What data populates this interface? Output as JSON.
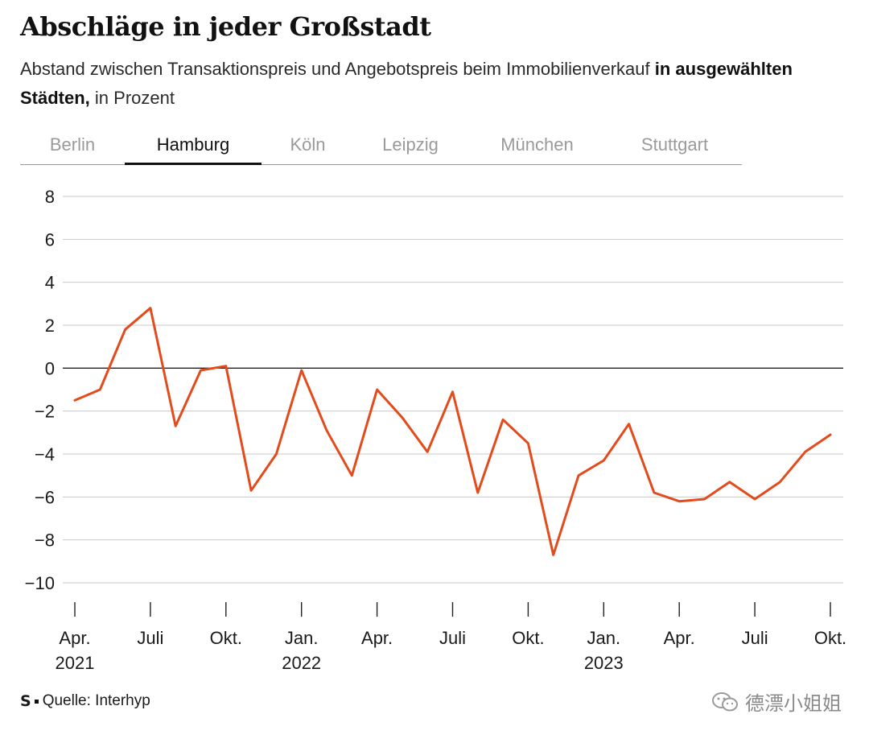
{
  "header": {
    "title": "Abschläge in jeder Großstadt",
    "subtitle_part1": "Abstand zwischen Transaktionspreis und Angebotspreis beim Immobilienverkauf ",
    "subtitle_bold": "in ausgewählten Städten,",
    "subtitle_part2": " in Prozent"
  },
  "tabs": [
    {
      "label": "Berlin",
      "active": false
    },
    {
      "label": "Hamburg",
      "active": true
    },
    {
      "label": "Köln",
      "active": false
    },
    {
      "label": "Leipzig",
      "active": false
    },
    {
      "label": "München",
      "active": false
    },
    {
      "label": "Stuttgart",
      "active": false
    }
  ],
  "chart_data": {
    "type": "line",
    "title": "",
    "xlabel": "",
    "ylabel": "",
    "ylim": [
      -10,
      8
    ],
    "yticks": [
      8,
      6,
      4,
      2,
      0,
      -2,
      -4,
      -6,
      -8,
      -10
    ],
    "ytick_labels": [
      "8",
      "6",
      "4",
      "2",
      "0",
      "−2",
      "−4",
      "−6",
      "−8",
      "−10"
    ],
    "grid": true,
    "x": [
      "2021-04",
      "2021-05",
      "2021-06",
      "2021-07",
      "2021-08",
      "2021-09",
      "2021-10",
      "2021-11",
      "2021-12",
      "2022-01",
      "2022-02",
      "2022-03",
      "2022-04",
      "2022-05",
      "2022-06",
      "2022-07",
      "2022-08",
      "2022-09",
      "2022-10",
      "2022-11",
      "2022-12",
      "2023-01",
      "2023-02",
      "2023-03",
      "2023-04",
      "2023-05",
      "2023-06",
      "2023-07",
      "2023-08",
      "2023-09",
      "2023-10"
    ],
    "xticks": [
      {
        "month": "2021-04",
        "label": "Apr.",
        "year": "2021"
      },
      {
        "month": "2021-07",
        "label": "Juli",
        "year": ""
      },
      {
        "month": "2021-10",
        "label": "Okt.",
        "year": ""
      },
      {
        "month": "2022-01",
        "label": "Jan.",
        "year": "2022"
      },
      {
        "month": "2022-04",
        "label": "Apr.",
        "year": ""
      },
      {
        "month": "2022-07",
        "label": "Juli",
        "year": ""
      },
      {
        "month": "2022-10",
        "label": "Okt.",
        "year": ""
      },
      {
        "month": "2023-01",
        "label": "Jan.",
        "year": "2023"
      },
      {
        "month": "2023-04",
        "label": "Apr.",
        "year": ""
      },
      {
        "month": "2023-07",
        "label": "Juli",
        "year": ""
      },
      {
        "month": "2023-10",
        "label": "Okt.",
        "year": ""
      }
    ],
    "series": [
      {
        "name": "",
        "color": "#e34b1c",
        "values": [
          -1.5,
          -1.0,
          1.8,
          2.8,
          -2.7,
          -0.1,
          0.1,
          -5.7,
          -4.0,
          -0.1,
          -2.9,
          -5.0,
          -1.0,
          -2.3,
          -3.9,
          -1.1,
          -5.8,
          -2.4,
          -3.5,
          -8.7,
          -5.0,
          -4.3,
          -2.6,
          -5.8,
          -6.2,
          -6.1,
          -5.3,
          -6.1,
          -5.3,
          -3.9,
          -3.1
        ]
      }
    ]
  },
  "footer": {
    "logo": "S",
    "source": "Quelle: Interhyp"
  },
  "watermark": {
    "text": "德漂小姐姐"
  },
  "colors": {
    "line": "#e34b1c",
    "grid": "#c8c8c8",
    "zero_line": "#222222",
    "tab_active": "#111111",
    "tab_inactive": "#9a9a9a"
  }
}
